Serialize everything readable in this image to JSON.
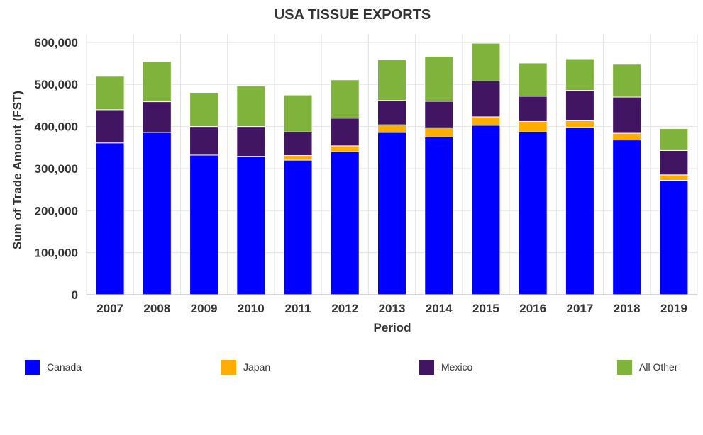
{
  "chart_data": {
    "type": "bar",
    "stacked": true,
    "title": "USA TISSUE EXPORTS",
    "xlabel": "Period",
    "ylabel": "Sum of Trade Amount (FST)",
    "ylim": [
      0,
      620000
    ],
    "yticks": [
      0,
      100000,
      200000,
      300000,
      400000,
      500000,
      600000
    ],
    "ytick_labels": [
      "0",
      "100,000",
      "200,000",
      "300,000",
      "400,000",
      "500,000",
      "600,000"
    ],
    "grid": true,
    "legend_position": "bottom",
    "categories": [
      "2007",
      "2008",
      "2009",
      "2010",
      "2011",
      "2012",
      "2013",
      "2014",
      "2015",
      "2016",
      "2017",
      "2018",
      "2019"
    ],
    "series": [
      {
        "name": "Canada",
        "color": "#0000ff",
        "values": [
          361000,
          386000,
          332000,
          329000,
          320000,
          340000,
          386000,
          375000,
          403000,
          387000,
          398000,
          368000,
          272000
        ]
      },
      {
        "name": "Japan",
        "color": "#ffad00",
        "values": [
          0,
          0,
          0,
          0,
          11000,
          14000,
          18000,
          22000,
          20000,
          25000,
          16000,
          16000,
          13000
        ]
      },
      {
        "name": "Mexico",
        "color": "#421563",
        "values": [
          79000,
          73000,
          68000,
          71000,
          56000,
          66000,
          58000,
          63000,
          85000,
          60000,
          72000,
          86000,
          58000
        ]
      },
      {
        "name": "All Other",
        "color": "#80b33b",
        "values": [
          81000,
          96000,
          81000,
          96000,
          88000,
          91000,
          97000,
          107000,
          90000,
          79000,
          75000,
          78000,
          52000
        ]
      }
    ]
  }
}
